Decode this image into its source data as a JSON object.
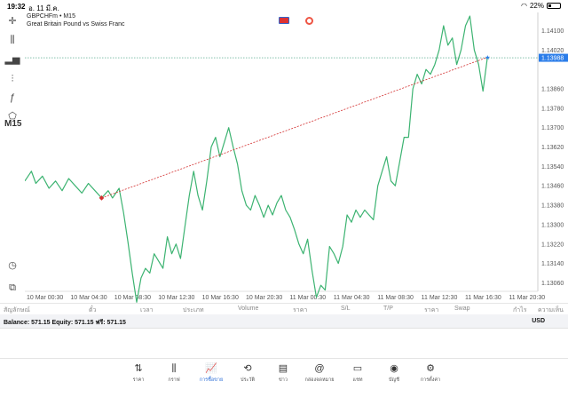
{
  "status": {
    "time": "19:32",
    "date": "อ. 11 มี.ค.",
    "battery": "22%",
    "battery_level": 0.22
  },
  "chart": {
    "symbol_line": "GBPCHFm • M15",
    "description": "Great Britain Pound vs Swiss Franc",
    "timeframe": "M15"
  },
  "chart_data": {
    "type": "line",
    "x_labels": [
      "10 Mar 00:30",
      "10 Mar 04:30",
      "10 Mar 08:30",
      "10 Mar 12:30",
      "10 Mar 16:30",
      "10 Mar 20:30",
      "11 Mar 00:30",
      "11 Mar 04:30",
      "11 Mar 08:30",
      "11 Mar 12:30",
      "11 Mar 16:30",
      "11 Mar 20:30"
    ],
    "y_ticks": [
      "1.14100",
      "1.14020",
      "1.13860",
      "1.13780",
      "1.13700",
      "1.13620",
      "1.13540",
      "1.13460",
      "1.13380",
      "1.13300",
      "1.13220",
      "1.13140",
      "1.13060"
    ],
    "y_tick_values": [
      1.141,
      1.1402,
      1.1386,
      1.1378,
      1.137,
      1.1362,
      1.1354,
      1.1346,
      1.1338,
      1.133,
      1.1322,
      1.1314,
      1.1306
    ],
    "ylim": [
      1.13025,
      1.14175
    ],
    "xlim": [
      0,
      23.4
    ],
    "current_price": "1.13988",
    "current_price_value": 1.13988,
    "line_color": "#3cb371",
    "series": [
      {
        "values": [
          [
            0,
            1.1348
          ],
          [
            0.3,
            1.1352
          ],
          [
            0.5,
            1.1347
          ],
          [
            0.8,
            1.135
          ],
          [
            1.1,
            1.1345
          ],
          [
            1.4,
            1.1348
          ],
          [
            1.7,
            1.1344
          ],
          [
            2.0,
            1.1349
          ],
          [
            2.3,
            1.1346
          ],
          [
            2.6,
            1.1343
          ],
          [
            2.9,
            1.1347
          ],
          [
            3.2,
            1.1344
          ],
          [
            3.5,
            1.1341
          ],
          [
            3.8,
            1.1344
          ],
          [
            4.0,
            1.1341
          ],
          [
            4.3,
            1.1345
          ],
          [
            4.5,
            1.1335
          ],
          [
            4.7,
            1.1323
          ],
          [
            4.9,
            1.131
          ],
          [
            5.1,
            1.1298
          ],
          [
            5.3,
            1.1308
          ],
          [
            5.5,
            1.1312
          ],
          [
            5.7,
            1.131
          ],
          [
            5.9,
            1.1318
          ],
          [
            6.1,
            1.1315
          ],
          [
            6.3,
            1.1312
          ],
          [
            6.5,
            1.1325
          ],
          [
            6.7,
            1.1318
          ],
          [
            6.9,
            1.1322
          ],
          [
            7.1,
            1.1316
          ],
          [
            7.3,
            1.1329
          ],
          [
            7.5,
            1.1342
          ],
          [
            7.7,
            1.1352
          ],
          [
            7.9,
            1.1342
          ],
          [
            8.1,
            1.1336
          ],
          [
            8.3,
            1.1348
          ],
          [
            8.5,
            1.1362
          ],
          [
            8.7,
            1.1366
          ],
          [
            8.9,
            1.1358
          ],
          [
            9.1,
            1.1364
          ],
          [
            9.3,
            1.137
          ],
          [
            9.5,
            1.1362
          ],
          [
            9.7,
            1.1355
          ],
          [
            9.9,
            1.1344
          ],
          [
            10.1,
            1.1338
          ],
          [
            10.3,
            1.1336
          ],
          [
            10.5,
            1.1342
          ],
          [
            10.7,
            1.1338
          ],
          [
            10.9,
            1.1333
          ],
          [
            11.1,
            1.1338
          ],
          [
            11.3,
            1.1334
          ],
          [
            11.5,
            1.1339
          ],
          [
            11.7,
            1.1342
          ],
          [
            11.9,
            1.1336
          ],
          [
            12.1,
            1.1333
          ],
          [
            12.3,
            1.1328
          ],
          [
            12.5,
            1.1322
          ],
          [
            12.7,
            1.1318
          ],
          [
            12.9,
            1.1324
          ],
          [
            13.1,
            1.1311
          ],
          [
            13.3,
            1.13
          ],
          [
            13.5,
            1.1305
          ],
          [
            13.7,
            1.1303
          ],
          [
            13.9,
            1.1321
          ],
          [
            14.1,
            1.1318
          ],
          [
            14.3,
            1.1314
          ],
          [
            14.5,
            1.1321
          ],
          [
            14.7,
            1.1334
          ],
          [
            14.9,
            1.1331
          ],
          [
            15.1,
            1.1336
          ],
          [
            15.3,
            1.1333
          ],
          [
            15.5,
            1.1336
          ],
          [
            15.7,
            1.1334
          ],
          [
            15.9,
            1.1332
          ],
          [
            16.1,
            1.1346
          ],
          [
            16.3,
            1.1352
          ],
          [
            16.5,
            1.1358
          ],
          [
            16.7,
            1.1348
          ],
          [
            16.9,
            1.1346
          ],
          [
            17.1,
            1.1356
          ],
          [
            17.3,
            1.1366
          ],
          [
            17.5,
            1.1366
          ],
          [
            17.7,
            1.1386
          ],
          [
            17.9,
            1.1392
          ],
          [
            18.1,
            1.1388
          ],
          [
            18.3,
            1.1394
          ],
          [
            18.5,
            1.1392
          ],
          [
            18.7,
            1.1396
          ],
          [
            18.9,
            1.1402
          ],
          [
            19.1,
            1.1412
          ],
          [
            19.3,
            1.1404
          ],
          [
            19.5,
            1.1407
          ],
          [
            19.7,
            1.1396
          ],
          [
            19.9,
            1.1402
          ],
          [
            20.1,
            1.1412
          ],
          [
            20.3,
            1.1416
          ],
          [
            20.5,
            1.1402
          ],
          [
            20.7,
            1.1396
          ],
          [
            20.9,
            1.1385
          ],
          [
            21.1,
            1.1399
          ]
        ]
      }
    ],
    "trend_line": {
      "from": [
        3.5,
        1.1341
      ],
      "to": [
        21.1,
        1.1399
      ],
      "color": "#d32f2f"
    },
    "grid": false
  },
  "trade_header": [
    "สัญลักษณ์",
    "ตั๋ว",
    "เวลา",
    "ประเภท",
    "Volume",
    "ราคา",
    "S/L",
    "T/P",
    "ราคา",
    "Swap",
    "กำไร",
    "ความเห็นตอบ"
  ],
  "balance": {
    "text": "Balance: 571.15 Equity: 571.15 ฟรี: 571.15",
    "currency": "USD"
  },
  "nav": [
    {
      "label": "ราคา",
      "icon": "⇅"
    },
    {
      "label": "กราฟ",
      "icon": "⫼"
    },
    {
      "label": "การซื้อขาย",
      "icon": "📈"
    },
    {
      "label": "ประวัติ",
      "icon": "⟲"
    },
    {
      "label": "ข่าว",
      "icon": "▤"
    },
    {
      "label": "กล่องจดหมาย",
      "icon": "@"
    },
    {
      "label": "แชท",
      "icon": "▭"
    },
    {
      "label": "บัญชี",
      "icon": "◉"
    },
    {
      "label": "การตั้งค่า",
      "icon": "⚙"
    }
  ],
  "colors": {
    "accent": "#2a6cd6",
    "price_tag": "#2b7de9"
  }
}
